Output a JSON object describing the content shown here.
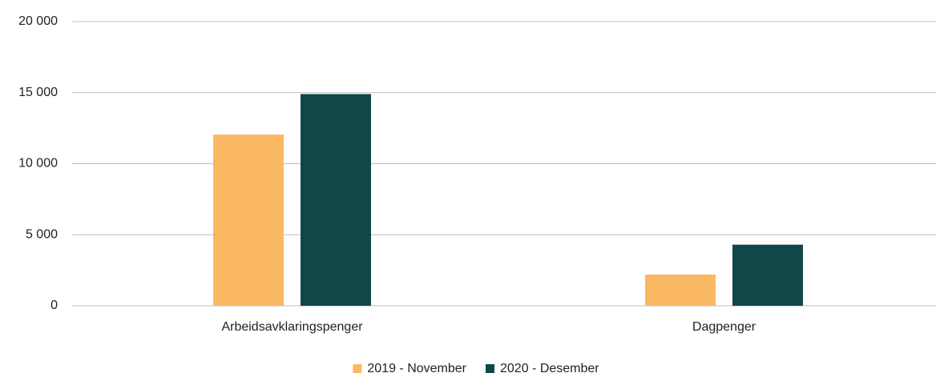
{
  "chart_data": {
    "type": "bar",
    "categories": [
      "Arbeidsavklaringspenger",
      "Dagpenger"
    ],
    "series": [
      {
        "name": "2019 - November",
        "color": "#fbb862",
        "values": [
          12050,
          2200
        ]
      },
      {
        "name": "2020 - Desember",
        "color": "#10484a",
        "values": [
          14900,
          4300
        ]
      }
    ],
    "ylim": [
      0,
      20000
    ],
    "yticks": [
      0,
      {
        "value": 5000,
        "label": "5 000"
      },
      {
        "value": 10000,
        "label": "10 000"
      },
      {
        "value": 15000,
        "label": "15 000"
      },
      {
        "value": 20000,
        "label": "20 000"
      }
    ],
    "grid": true,
    "legend": "bottom"
  }
}
